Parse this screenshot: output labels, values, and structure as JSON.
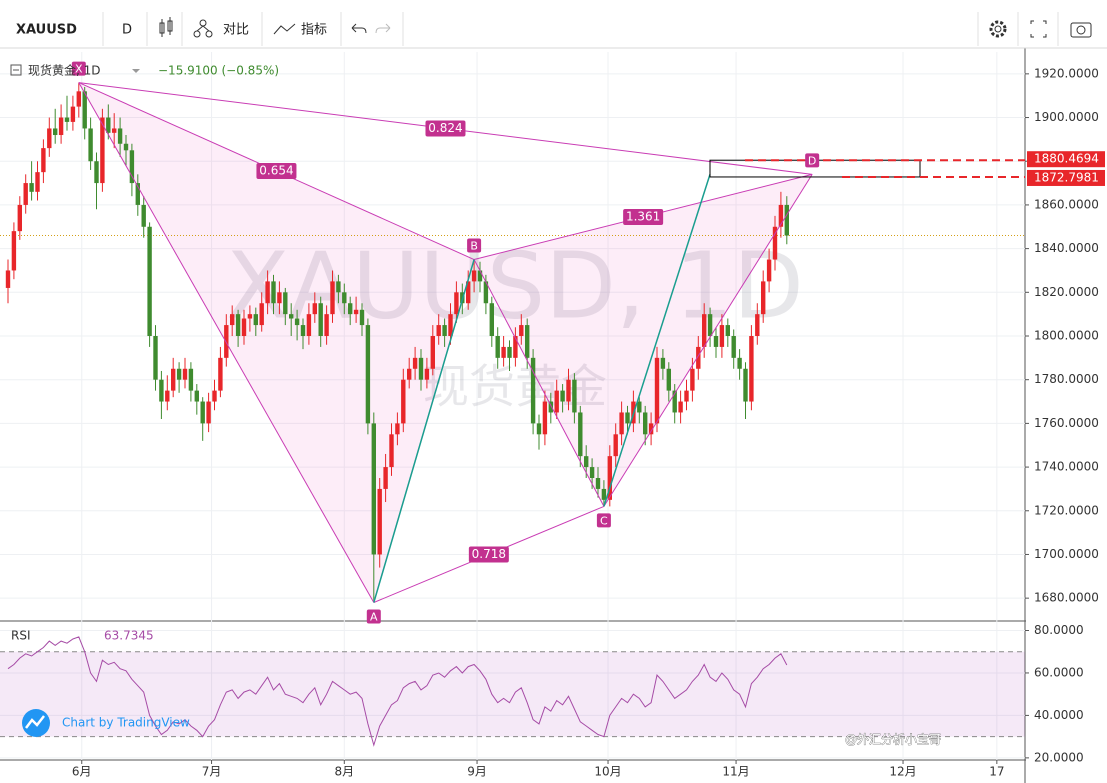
{
  "toolbar": {
    "symbol": "XAUUSD",
    "interval": "D",
    "compare": "对比",
    "indicators": "指标"
  },
  "chart_data": [
    {
      "type": "candlestick",
      "title": "现货黄金, 1D",
      "change": "−15.9100 (−0.85%)",
      "watermark_symbol": "XAUUSD, 1D",
      "watermark_name": "现货黄金",
      "up_color": "#e8262a",
      "down_color": "#3f8b2f",
      "grid": true,
      "ylim": [
        1670,
        1930
      ],
      "yticks": [
        {
          "value": 1680,
          "label": "1680.0000"
        },
        {
          "value": 1700,
          "label": "1700.0000"
        },
        {
          "value": 1720,
          "label": "1720.0000"
        },
        {
          "value": 1740,
          "label": "1740.0000"
        },
        {
          "value": 1760,
          "label": "1760.0000"
        },
        {
          "value": 1780,
          "label": "1780.0000"
        },
        {
          "value": 1800,
          "label": "1800.0000"
        },
        {
          "value": 1820,
          "label": "1820.0000"
        },
        {
          "value": 1840,
          "label": "1840.0000"
        },
        {
          "value": 1860,
          "label": "1860.0000"
        },
        {
          "value": 1880,
          "label": "1880.0000"
        },
        {
          "value": 1900,
          "label": "1900.0000"
        },
        {
          "value": 1920,
          "label": "1920.0000"
        }
      ],
      "xticks": [
        {
          "value": 12.5,
          "label": "6月"
        },
        {
          "value": 34.5,
          "label": "7月"
        },
        {
          "value": 57,
          "label": "8月"
        },
        {
          "value": 79.5,
          "label": "9月"
        },
        {
          "value": 101.7,
          "label": "10月"
        },
        {
          "value": 123.4,
          "label": "11月"
        },
        {
          "value": 151.7,
          "label": "12月"
        },
        {
          "value": 167.6,
          "label": "17"
        }
      ],
      "price_lines": [
        1880.4694,
        1872.7981
      ],
      "pattern": {
        "points": [
          {
            "label": "X",
            "index": 12,
            "price": 1916
          },
          {
            "label": "A",
            "index": 62,
            "price": 1678
          },
          {
            "label": "B",
            "index": 79,
            "price": 1835
          },
          {
            "label": "C",
            "index": 101,
            "price": 1722
          },
          {
            "label": "D",
            "index": 136.3,
            "price": 1874
          }
        ],
        "ratios": [
          0.654,
          0.824,
          1.361,
          0.718
        ]
      },
      "candles": [
        [
          1822,
          1835,
          1815,
          1830
        ],
        [
          1830,
          1852,
          1826,
          1848
        ],
        [
          1848,
          1864,
          1844,
          1860
        ],
        [
          1860,
          1874,
          1856,
          1870
        ],
        [
          1870,
          1880,
          1862,
          1866
        ],
        [
          1866,
          1880,
          1862,
          1875
        ],
        [
          1875,
          1890,
          1870,
          1886
        ],
        [
          1886,
          1900,
          1882,
          1895
        ],
        [
          1895,
          1904,
          1888,
          1892
        ],
        [
          1892,
          1906,
          1888,
          1900
        ],
        [
          1900,
          1910,
          1894,
          1898
        ],
        [
          1898,
          1910,
          1894,
          1905
        ],
        [
          1905,
          1916,
          1900,
          1912
        ],
        [
          1912,
          1914,
          1890,
          1895
        ],
        [
          1895,
          1900,
          1876,
          1880
        ],
        [
          1880,
          1884,
          1858,
          1870
        ],
        [
          1870,
          1904,
          1866,
          1900
        ],
        [
          1900,
          1906,
          1890,
          1893
        ],
        [
          1893,
          1902,
          1886,
          1895
        ],
        [
          1895,
          1900,
          1882,
          1888
        ],
        [
          1888,
          1892,
          1878,
          1885
        ],
        [
          1885,
          1888,
          1864,
          1870
        ],
        [
          1870,
          1874,
          1855,
          1860
        ],
        [
          1860,
          1864,
          1845,
          1850
        ],
        [
          1850,
          1852,
          1795,
          1800
        ],
        [
          1800,
          1805,
          1775,
          1780
        ],
        [
          1780,
          1784,
          1762,
          1770
        ],
        [
          1770,
          1782,
          1766,
          1775
        ],
        [
          1775,
          1790,
          1772,
          1785
        ],
        [
          1785,
          1788,
          1774,
          1780
        ],
        [
          1780,
          1790,
          1776,
          1785
        ],
        [
          1785,
          1788,
          1770,
          1775
        ],
        [
          1775,
          1778,
          1764,
          1770
        ],
        [
          1770,
          1772,
          1752,
          1760
        ],
        [
          1760,
          1774,
          1756,
          1770
        ],
        [
          1770,
          1780,
          1766,
          1775
        ],
        [
          1775,
          1795,
          1772,
          1790
        ],
        [
          1790,
          1810,
          1786,
          1805
        ],
        [
          1805,
          1814,
          1800,
          1810
        ],
        [
          1810,
          1812,
          1795,
          1800
        ],
        [
          1800,
          1812,
          1796,
          1808
        ],
        [
          1808,
          1814,
          1802,
          1810
        ],
        [
          1810,
          1813,
          1800,
          1805
        ],
        [
          1805,
          1820,
          1802,
          1815
        ],
        [
          1815,
          1830,
          1810,
          1825
        ],
        [
          1825,
          1828,
          1810,
          1815
        ],
        [
          1815,
          1825,
          1810,
          1820
        ],
        [
          1820,
          1822,
          1805,
          1810
        ],
        [
          1810,
          1815,
          1800,
          1808
        ],
        [
          1808,
          1812,
          1798,
          1805
        ],
        [
          1805,
          1808,
          1794,
          1800
        ],
        [
          1800,
          1815,
          1796,
          1810
        ],
        [
          1810,
          1820,
          1806,
          1815
        ],
        [
          1815,
          1818,
          1795,
          1800
        ],
        [
          1800,
          1814,
          1796,
          1810
        ],
        [
          1810,
          1830,
          1806,
          1825
        ],
        [
          1825,
          1828,
          1815,
          1820
        ],
        [
          1820,
          1824,
          1810,
          1815
        ],
        [
          1815,
          1818,
          1805,
          1810
        ],
        [
          1810,
          1818,
          1806,
          1812
        ],
        [
          1812,
          1815,
          1800,
          1805
        ],
        [
          1805,
          1808,
          1755,
          1760
        ],
        [
          1760,
          1765,
          1678,
          1700
        ],
        [
          1700,
          1735,
          1694,
          1730
        ],
        [
          1730,
          1746,
          1724,
          1740
        ],
        [
          1740,
          1760,
          1736,
          1755
        ],
        [
          1755,
          1765,
          1750,
          1760
        ],
        [
          1760,
          1785,
          1756,
          1780
        ],
        [
          1780,
          1790,
          1776,
          1785
        ],
        [
          1785,
          1795,
          1780,
          1790
        ],
        [
          1790,
          1794,
          1775,
          1780
        ],
        [
          1780,
          1790,
          1776,
          1785
        ],
        [
          1785,
          1805,
          1782,
          1800
        ],
        [
          1800,
          1810,
          1796,
          1805
        ],
        [
          1805,
          1808,
          1795,
          1800
        ],
        [
          1800,
          1815,
          1796,
          1810
        ],
        [
          1810,
          1825,
          1806,
          1820
        ],
        [
          1820,
          1824,
          1810,
          1815
        ],
        [
          1815,
          1830,
          1812,
          1825
        ],
        [
          1825,
          1835,
          1820,
          1830
        ],
        [
          1830,
          1834,
          1820,
          1825
        ],
        [
          1825,
          1828,
          1810,
          1815
        ],
        [
          1815,
          1818,
          1795,
          1800
        ],
        [
          1800,
          1804,
          1785,
          1790
        ],
        [
          1790,
          1800,
          1786,
          1795
        ],
        [
          1795,
          1798,
          1784,
          1790
        ],
        [
          1790,
          1804,
          1786,
          1800
        ],
        [
          1800,
          1810,
          1796,
          1805
        ],
        [
          1805,
          1808,
          1785,
          1790
        ],
        [
          1790,
          1794,
          1755,
          1760
        ],
        [
          1760,
          1764,
          1748,
          1755
        ],
        [
          1755,
          1775,
          1750,
          1770
        ],
        [
          1770,
          1774,
          1760,
          1765
        ],
        [
          1765,
          1780,
          1762,
          1775
        ],
        [
          1775,
          1778,
          1765,
          1770
        ],
        [
          1770,
          1785,
          1766,
          1780
        ],
        [
          1780,
          1783,
          1760,
          1765
        ],
        [
          1765,
          1768,
          1740,
          1745
        ],
        [
          1745,
          1750,
          1735,
          1740
        ],
        [
          1740,
          1744,
          1730,
          1735
        ],
        [
          1735,
          1740,
          1726,
          1730
        ],
        [
          1730,
          1734,
          1722,
          1725
        ],
        [
          1725,
          1750,
          1722,
          1745
        ],
        [
          1745,
          1760,
          1740,
          1755
        ],
        [
          1755,
          1770,
          1750,
          1765
        ],
        [
          1765,
          1768,
          1755,
          1760
        ],
        [
          1760,
          1775,
          1756,
          1770
        ],
        [
          1770,
          1772,
          1760,
          1765
        ],
        [
          1765,
          1768,
          1750,
          1755
        ],
        [
          1755,
          1765,
          1750,
          1760
        ],
        [
          1760,
          1795,
          1756,
          1790
        ],
        [
          1790,
          1794,
          1780,
          1785
        ],
        [
          1785,
          1788,
          1770,
          1775
        ],
        [
          1775,
          1778,
          1760,
          1765
        ],
        [
          1765,
          1775,
          1760,
          1770
        ],
        [
          1770,
          1780,
          1766,
          1775
        ],
        [
          1775,
          1790,
          1770,
          1785
        ],
        [
          1785,
          1800,
          1780,
          1795
        ],
        [
          1795,
          1815,
          1790,
          1810
        ],
        [
          1810,
          1813,
          1795,
          1800
        ],
        [
          1800,
          1804,
          1790,
          1795
        ],
        [
          1795,
          1810,
          1790,
          1805
        ],
        [
          1805,
          1808,
          1795,
          1800
        ],
        [
          1800,
          1803,
          1785,
          1790
        ],
        [
          1790,
          1794,
          1780,
          1785
        ],
        [
          1785,
          1788,
          1762,
          1770
        ],
        [
          1770,
          1805,
          1766,
          1800
        ],
        [
          1800,
          1815,
          1796,
          1810
        ],
        [
          1810,
          1830,
          1806,
          1825
        ],
        [
          1825,
          1840,
          1820,
          1835
        ],
        [
          1835,
          1855,
          1830,
          1850
        ],
        [
          1850,
          1866,
          1845,
          1860
        ],
        [
          1860,
          1864,
          1842,
          1846
        ]
      ]
    },
    {
      "type": "line",
      "name": "RSI",
      "color": "#a64ca6",
      "ylim": [
        19,
        84
      ],
      "band": [
        30,
        70
      ],
      "yticks": [
        {
          "value": 80,
          "label": "80.0000"
        },
        {
          "value": 60,
          "label": "60.0000"
        },
        {
          "value": 40,
          "label": "40.0000"
        },
        {
          "value": 20,
          "label": "20.0000"
        }
      ],
      "values": [
        62,
        64,
        67,
        69,
        68,
        70,
        72,
        75,
        73,
        75,
        74,
        76,
        77,
        70,
        60,
        56,
        66,
        64,
        65,
        62,
        61,
        57,
        54,
        51,
        40,
        35,
        31,
        33,
        37,
        36,
        38,
        35,
        33,
        30,
        35,
        38,
        45,
        51,
        52,
        48,
        51,
        52,
        50,
        54,
        58,
        52,
        55,
        50,
        49,
        48,
        46,
        50,
        53,
        45,
        50,
        56,
        54,
        52,
        50,
        51,
        48,
        36,
        26,
        35,
        40,
        45,
        47,
        53,
        55,
        56,
        52,
        54,
        59,
        60,
        58,
        61,
        63,
        60,
        63,
        64,
        61,
        57,
        50,
        46,
        48,
        46,
        51,
        53,
        46,
        38,
        36,
        44,
        42,
        47,
        45,
        49,
        43,
        37,
        35,
        33,
        31,
        30,
        40,
        44,
        48,
        46,
        50,
        48,
        44,
        46,
        59,
        56,
        52,
        48,
        50,
        52,
        56,
        59,
        64,
        58,
        56,
        60,
        57,
        52,
        50,
        44,
        55,
        58,
        62,
        64,
        67,
        69,
        63.7345
      ]
    }
  ],
  "credit": "Chart by TradingView",
  "watermark": "@外汇分析小宝哥"
}
